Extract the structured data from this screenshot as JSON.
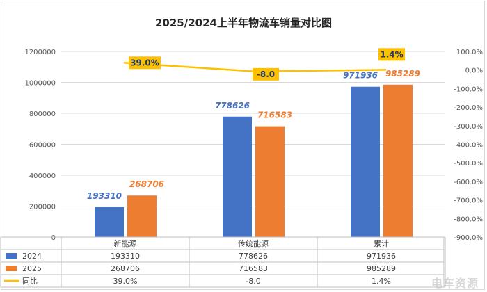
{
  "chart_data": {
    "type": "bar",
    "title": "2025/2024上半年物流车销量对比图",
    "categories": [
      "新能源",
      "传统能源",
      "累计"
    ],
    "series": [
      {
        "name": "2024",
        "values": [
          193310,
          778626,
          971936
        ],
        "color": "#4472C4"
      },
      {
        "name": "2025",
        "values": [
          268706,
          716583,
          985289
        ],
        "color": "#ED7D31"
      }
    ],
    "line_series": {
      "name": "同比",
      "values": [
        39.0,
        -8.0,
        1.4
      ],
      "labels": [
        "39.0%",
        "-8.0",
        "1.4%"
      ],
      "table_labels": [
        "39.0%",
        "-8.0",
        "1.4%"
      ],
      "color": "#FFC000"
    },
    "ylim": [
      0,
      1200000
    ],
    "yticks": [
      "0",
      "200000",
      "400000",
      "600000",
      "800000",
      "1000000",
      "1200000"
    ],
    "y2lim": [
      -900,
      100
    ],
    "y2ticks": [
      "100.0%",
      "0.0%",
      "-100.0%",
      "-200.0%",
      "-300.0%",
      "-400.0%",
      "-500.0%",
      "-600.0%",
      "-700.0%",
      "-800.0%",
      "-900.0%"
    ],
    "grid": true,
    "legend": "data-table"
  },
  "watermark": "电车资源"
}
